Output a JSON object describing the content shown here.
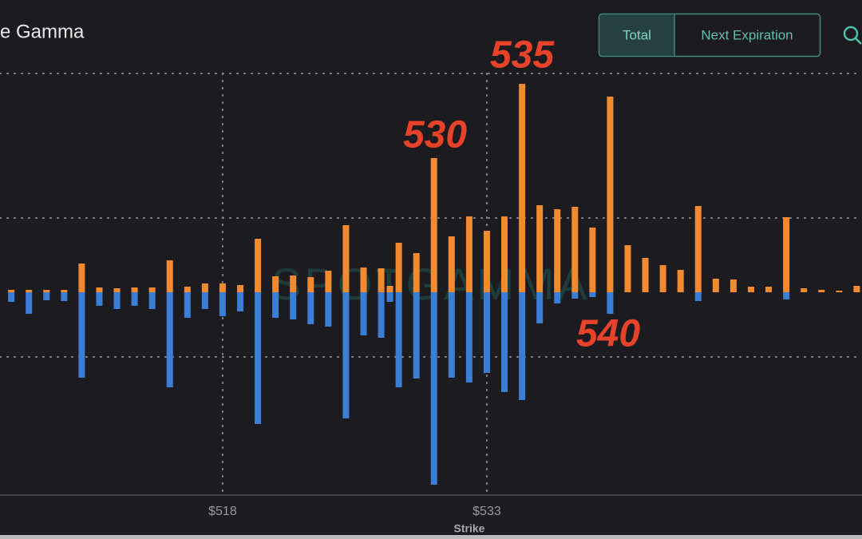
{
  "chart_data": {
    "type": "bar",
    "title": "e Gamma",
    "buttons": [
      "Total",
      "Next Expiration"
    ],
    "watermark": "SPOTGAMMA",
    "xlabel": "Strike",
    "x": [
      506,
      507,
      508,
      509,
      510,
      511,
      512,
      513,
      514,
      515,
      516,
      517,
      518,
      519,
      520,
      521,
      522,
      523,
      524,
      525,
      526,
      527,
      527.5,
      528,
      529,
      530,
      531,
      532,
      533,
      534,
      535,
      536,
      537,
      538,
      539,
      540,
      541,
      542,
      543,
      544,
      545,
      546,
      547,
      548,
      549,
      550,
      551,
      552,
      553,
      554
    ],
    "xlim": [
      505.36,
      554.3
    ],
    "xticks": [
      {
        "value": 518,
        "label": "$518"
      },
      {
        "value": 533,
        "label": "$533"
      }
    ],
    "ylim": [
      -254,
      274
    ],
    "series": [
      {
        "color": "#f28a30",
        "values": [
          3,
          3,
          3,
          3,
          36,
          6,
          5,
          6,
          6,
          40,
          7,
          11,
          11,
          9,
          67,
          20,
          21,
          19,
          27,
          84,
          31,
          30,
          8,
          62,
          49,
          168,
          70,
          95,
          77,
          95,
          261,
          109,
          104,
          107,
          81,
          245,
          59,
          43,
          34,
          28,
          108,
          17,
          16,
          7,
          7,
          94,
          5,
          3,
          2,
          8
        ]
      },
      {
        "color": "#3a7fd5",
        "values": [
          -12,
          -27,
          -10,
          -11,
          -107,
          -17,
          -21,
          -17,
          -21,
          -119,
          -32,
          -21,
          -30,
          -24,
          -165,
          -32,
          -34,
          -40,
          -43,
          -158,
          -54,
          -57,
          -12,
          -119,
          -108,
          -241,
          -107,
          -113,
          -101,
          -125,
          -135,
          -39,
          -14,
          -8,
          -6,
          -27,
          0,
          0,
          0,
          0,
          -11,
          0,
          0,
          0,
          0,
          -9,
          0,
          0,
          0,
          0
        ]
      }
    ],
    "annotations": [
      "530",
      "535",
      "540"
    ]
  }
}
